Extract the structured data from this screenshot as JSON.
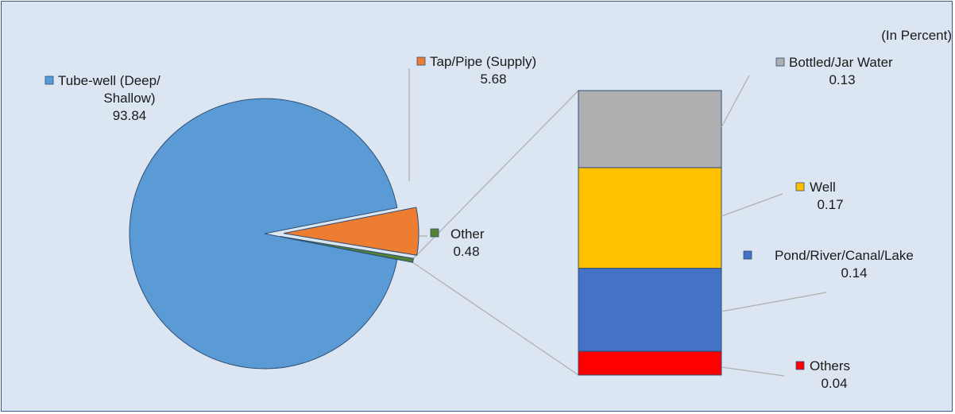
{
  "chart_data": {
    "type": "bar-of-pie",
    "unit_note": "(In Percent)",
    "pie": {
      "slices": [
        {
          "name_lines": [
            "Tube-well (Deep/",
            "Shallow)"
          ],
          "value": 93.84,
          "value_label": "93.84",
          "color": "#5b9bd5"
        },
        {
          "name_lines": [
            "Tap/Pipe (Supply)"
          ],
          "value": 5.68,
          "value_label": "5.68",
          "color": "#ed7d31"
        },
        {
          "name_lines": [
            "Other"
          ],
          "value": 0.48,
          "value_label": "0.48",
          "color": "#548235"
        }
      ]
    },
    "bar": {
      "segments": [
        {
          "name": "Bottled/Jar Water",
          "value": 0.13,
          "value_label": "0.13",
          "color": "#afafb1"
        },
        {
          "name": "Well",
          "value": 0.17,
          "value_label": "0.17",
          "color": "#ffc000"
        },
        {
          "name": "Pond/River/Canal/Lake",
          "value": 0.14,
          "value_label": "0.14",
          "color": "#4472c4"
        },
        {
          "name": "Others",
          "value": 0.04,
          "value_label": "0.04",
          "color": "#ff0000"
        }
      ]
    }
  }
}
